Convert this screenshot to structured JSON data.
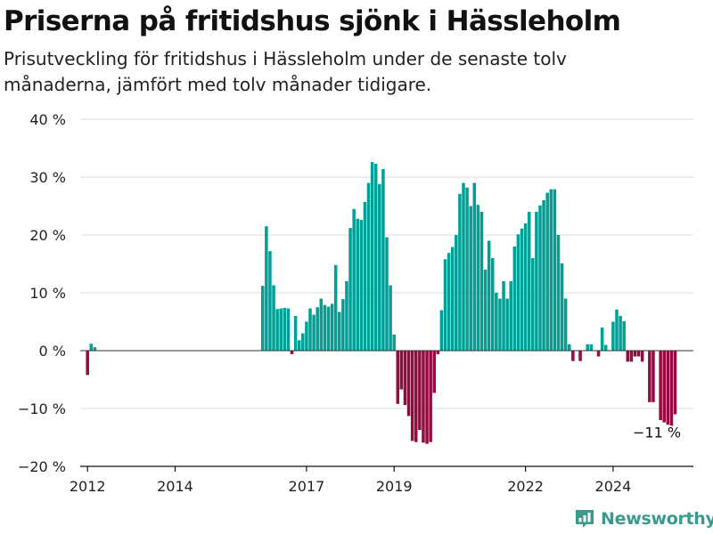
{
  "header": {
    "title": "Priserna på fritidshus sjönk i Hässleholm",
    "subtitle": "Prisutveckling för fritidshus i Hässleholm under de senaste tolv månaderna, jämfört med tolv månader tidigare."
  },
  "brand": {
    "name": "Newsworthy",
    "icon": "newsworthy-logo-icon",
    "color": "#3a9a8c"
  },
  "colors": {
    "positive": "#00a096",
    "negative": "#950a40",
    "grid": "#dddddd",
    "axis": "#111111"
  },
  "chart_data": {
    "type": "bar",
    "title": "Priserna på fritidshus sjönk i Hässleholm",
    "subtitle": "Prisutveckling för fritidshus i Hässleholm under de senaste tolv månaderna, jämfört med tolv månader tidigare.",
    "xlabel": "",
    "ylabel": "",
    "ylim": [
      -20,
      40
    ],
    "yticks": [
      40,
      30,
      20,
      10,
      0,
      -10,
      -20
    ],
    "ytick_labels": [
      "40 %",
      "30 %",
      "20 %",
      "10 %",
      "0 %",
      "−10 %",
      "−20 %"
    ],
    "xlim": [
      "2011-11",
      "2025-11"
    ],
    "xticks": [
      "2012-01",
      "2014-01",
      "2017-01",
      "2019-01",
      "2022-01",
      "2024-01"
    ],
    "xtick_labels": [
      "2012",
      "2014",
      "2017",
      "2019",
      "2022",
      "2024"
    ],
    "grid": true,
    "annotation": {
      "text": "−11 %",
      "x": "2025-01",
      "y": -11
    },
    "series": [
      {
        "x_start": "2012-01",
        "values": [
          -4.2,
          1.2,
          0.6,
          null,
          null,
          null,
          null,
          null,
          null,
          null,
          null,
          null,
          null,
          null,
          null,
          null,
          null,
          null,
          null,
          null,
          null,
          null,
          null,
          null,
          null,
          null,
          null,
          null,
          null,
          null,
          null,
          null,
          null,
          null,
          null,
          null,
          null,
          null,
          null,
          null,
          null,
          null,
          null,
          null,
          null,
          null,
          null,
          null,
          11.2,
          21.5,
          17.2,
          11.3,
          7.2,
          7.3,
          7.4,
          7.3,
          -0.6,
          6.0,
          1.8,
          3.0,
          5.0,
          7.3,
          6.2,
          7.5,
          9.0,
          7.9,
          7.6,
          8.1,
          14.8,
          6.7,
          8.9,
          12.0,
          21.2,
          24.5,
          22.8,
          22.6,
          25.7,
          29.0,
          32.6,
          32.3,
          28.8,
          31.4,
          19.6,
          11.3,
          2.8,
          -9.2,
          -6.7,
          -9.4,
          -11.3,
          -15.6,
          -15.8,
          -13.7,
          -15.9,
          -16.1,
          -15.8,
          -7.3,
          -0.6,
          7.0,
          15.8,
          16.9,
          17.9,
          20.0,
          27.1,
          29.0,
          28.2,
          25.0,
          29.0,
          25.2,
          24.0,
          14.0,
          19.0,
          16.0,
          10.0,
          9.0,
          12.0,
          9.0,
          12.0,
          18.0,
          20.1,
          21.1,
          22.0,
          24.0,
          16.0,
          24.0,
          25.1,
          26.0,
          27.3,
          27.9,
          27.9,
          20.0,
          15.1,
          9.0,
          1.1,
          -1.8,
          null,
          -1.8,
          null,
          1.1,
          1.1,
          null,
          -1.0,
          4.0,
          1.0,
          null,
          5.0,
          7.1,
          6.0,
          5.1,
          -1.9,
          -1.9,
          -1.0,
          -1.0,
          -1.9,
          null,
          -8.9,
          -8.9,
          null,
          -12.0,
          -12.4,
          -12.8,
          -13.6,
          -11.0
        ]
      }
    ]
  }
}
